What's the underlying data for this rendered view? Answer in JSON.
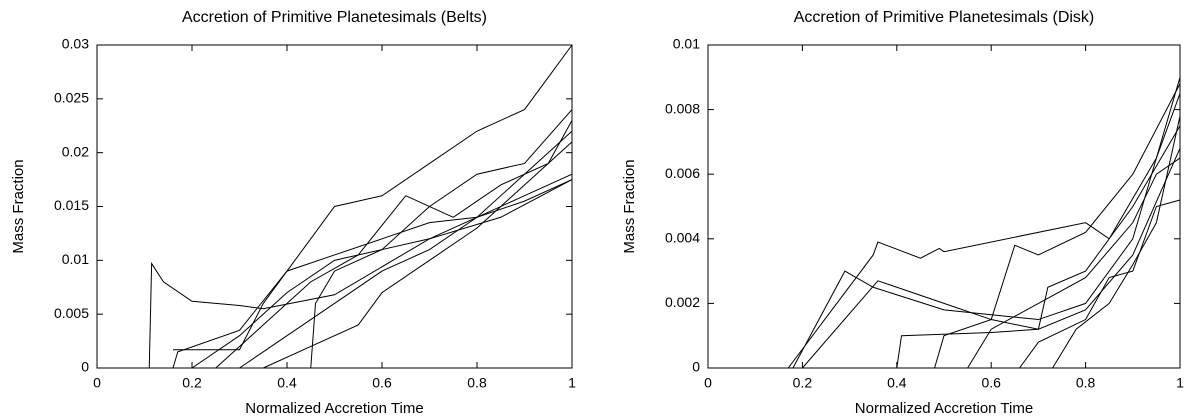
{
  "chart_data": [
    {
      "type": "line",
      "title": "Accretion of Primitive Planetesimals (Belts)",
      "xlabel": "Normalized Accretion Time",
      "ylabel": "Mass Fraction",
      "xlim": [
        0,
        1
      ],
      "ylim": [
        0,
        0.03
      ],
      "xticks": [
        0,
        0.2,
        0.4,
        0.6,
        0.8,
        1
      ],
      "yticks": [
        0,
        0.005,
        0.01,
        0.015,
        0.02,
        0.025,
        0.03
      ],
      "series": [
        {
          "color": "#000000",
          "x": [
            0.11,
            0.115,
            0.14,
            0.2,
            0.3,
            0.35,
            0.5,
            0.7,
            0.85,
            1
          ],
          "values": [
            0,
            0.0097,
            0.008,
            0.0062,
            0.0058,
            0.0055,
            0.0068,
            0.012,
            0.014,
            0.0175
          ]
        },
        {
          "color": "#000000",
          "x": [
            0.16,
            0.17,
            0.3,
            0.4,
            0.5,
            0.6,
            0.7,
            0.8,
            0.9,
            0.95,
            1
          ],
          "values": [
            0,
            0.0015,
            0.0035,
            0.009,
            0.015,
            0.016,
            0.019,
            0.022,
            0.024,
            0.027,
            0.03
          ]
        },
        {
          "color": "#000000",
          "x": [
            0.2,
            0.3,
            0.4,
            0.5,
            0.6,
            0.7,
            0.8,
            0.9,
            1
          ],
          "values": [
            0,
            0.003,
            0.007,
            0.01,
            0.011,
            0.012,
            0.014,
            0.016,
            0.018
          ]
        },
        {
          "color": "#000000",
          "x": [
            0.25,
            0.35,
            0.45,
            0.55,
            0.65,
            0.75,
            0.85,
            0.95,
            1
          ],
          "values": [
            0,
            0.004,
            0.008,
            0.0105,
            0.016,
            0.014,
            0.017,
            0.019,
            0.023
          ]
        },
        {
          "color": "#000000",
          "x": [
            0.3,
            0.4,
            0.5,
            0.6,
            0.7,
            0.8,
            0.9,
            1
          ],
          "values": [
            0,
            0.003,
            0.006,
            0.009,
            0.011,
            0.014,
            0.018,
            0.022
          ]
        },
        {
          "color": "#000000",
          "x": [
            0.35,
            0.45,
            0.55,
            0.6,
            0.7,
            0.8,
            0.9,
            1
          ],
          "values": [
            0,
            0.002,
            0.004,
            0.007,
            0.01,
            0.013,
            0.017,
            0.021
          ]
        },
        {
          "color": "#000000",
          "x": [
            0.45,
            0.46,
            0.5,
            0.6,
            0.7,
            0.8,
            0.9,
            1
          ],
          "values": [
            0,
            0.006,
            0.009,
            0.011,
            0.015,
            0.018,
            0.019,
            0.024
          ]
        },
        {
          "color": "#000000",
          "x": [
            0.16,
            0.3,
            0.35,
            0.4,
            0.5,
            0.6,
            0.7,
            0.8,
            0.9,
            1
          ],
          "values": [
            0.0017,
            0.0017,
            0.006,
            0.009,
            0.0105,
            0.012,
            0.0135,
            0.014,
            0.0155,
            0.0175
          ]
        }
      ]
    },
    {
      "type": "line",
      "title": "Accretion of Primitive Planetesimals (Disk)",
      "xlabel": "Normalized Accretion Time",
      "ylabel": "Mass Fraction",
      "xlim": [
        0,
        1
      ],
      "ylim": [
        0,
        0.01
      ],
      "xticks": [
        0,
        0.2,
        0.4,
        0.6,
        0.8,
        1
      ],
      "yticks": [
        0,
        0.002,
        0.004,
        0.006,
        0.008,
        0.01
      ],
      "series": [
        {
          "color": "#000000",
          "x": [
            0.03,
            0.17,
            0.35,
            0.36,
            0.45,
            0.49,
            0.5,
            0.8,
            0.85,
            0.95,
            1
          ],
          "values": [
            0,
            0,
            0.0035,
            0.0039,
            0.0034,
            0.0037,
            0.0036,
            0.0045,
            0.004,
            0.0065,
            0.0085
          ]
        },
        {
          "color": "#000000",
          "x": [
            0.18,
            0.29,
            0.35,
            0.5,
            0.7,
            0.8,
            0.9,
            1
          ],
          "values": [
            0,
            0.003,
            0.0025,
            0.0018,
            0.0015,
            0.002,
            0.004,
            0.009
          ]
        },
        {
          "color": "#000000",
          "x": [
            0.2,
            0.36,
            0.5,
            0.6,
            0.7,
            0.8,
            0.9,
            1
          ],
          "values": [
            0,
            0.0027,
            0.002,
            0.0015,
            0.0012,
            0.0018,
            0.0035,
            0.0068
          ]
        },
        {
          "color": "#000000",
          "x": [
            0.4,
            0.41,
            0.6,
            0.7,
            0.72,
            0.8,
            0.9,
            1
          ],
          "values": [
            0,
            0.001,
            0.0011,
            0.0012,
            0.0025,
            0.003,
            0.005,
            0.0075
          ]
        },
        {
          "color": "#000000",
          "x": [
            0.48,
            0.5,
            0.6,
            0.65,
            0.7,
            0.8,
            0.9,
            1
          ],
          "values": [
            0,
            0.001,
            0.0015,
            0.0038,
            0.0035,
            0.0042,
            0.006,
            0.0088
          ]
        },
        {
          "color": "#000000",
          "x": [
            0.55,
            0.6,
            0.7,
            0.8,
            0.9,
            0.95,
            1
          ],
          "values": [
            0,
            0.0012,
            0.002,
            0.0028,
            0.0045,
            0.006,
            0.0065
          ]
        },
        {
          "color": "#000000",
          "x": [
            0.66,
            0.7,
            0.8,
            0.85,
            0.9,
            0.95,
            1
          ],
          "values": [
            0,
            0.0008,
            0.0015,
            0.0028,
            0.003,
            0.005,
            0.0052
          ]
        },
        {
          "color": "#000000",
          "x": [
            0.73,
            0.78,
            0.85,
            0.9,
            0.95,
            1
          ],
          "values": [
            0,
            0.0012,
            0.002,
            0.0032,
            0.0045,
            0.0078
          ]
        }
      ]
    }
  ]
}
